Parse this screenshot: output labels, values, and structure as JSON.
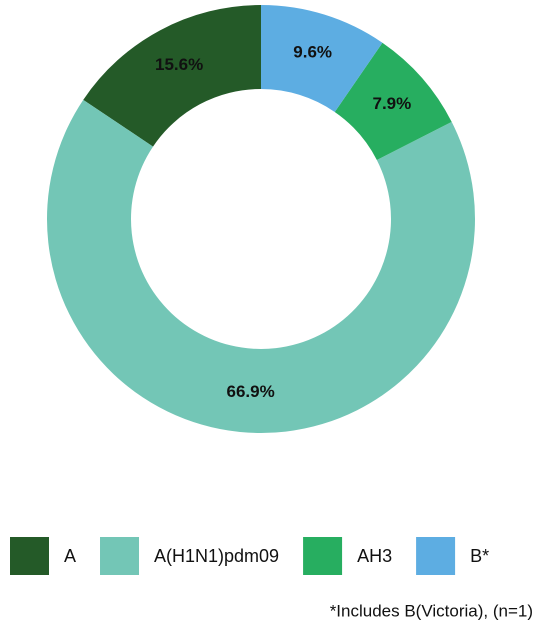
{
  "chart_data": {
    "type": "donut",
    "categories": [
      "A",
      "A(H1N1)pdm09",
      "AH3",
      "B*"
    ],
    "values": [
      15.6,
      66.9,
      7.9,
      9.6
    ],
    "value_labels": [
      "15.6%",
      "66.9%",
      "7.9%",
      "9.6%"
    ],
    "colors": [
      "#245a28",
      "#73c6b6",
      "#27ae60",
      "#5dade2"
    ],
    "direction": "counterclockwise",
    "legend": "bottom",
    "footnote": "*Includes B(Victoria), (n=1)"
  }
}
